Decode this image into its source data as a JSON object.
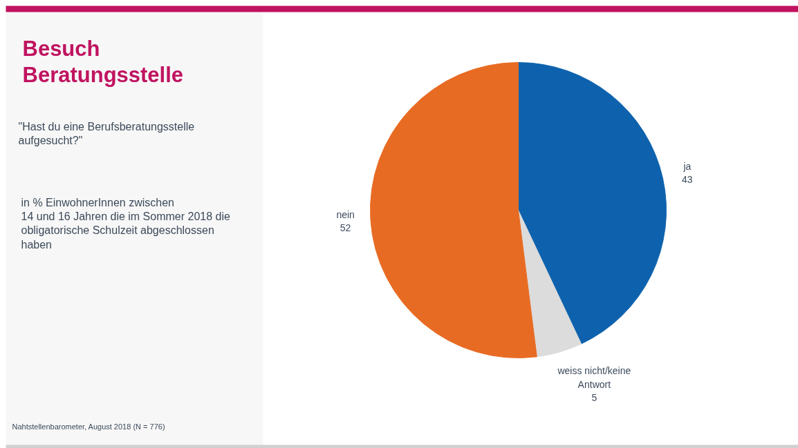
{
  "chart_data": {
    "type": "pie",
    "title": "Besuch\nBeratungsstelle",
    "subtitle": "\"Hast du eine Berufsberatungsstelle\naufgesucht?\"",
    "annotations": [
      "in % EinwohnerInnen zwischen\n14 und 16 Jahren die im Sommer 2018 die\nobligatorische Schulzeit abgeschlossen\nhaben",
      "Nahtstellenbarometer, August 2018 (N = 776)"
    ],
    "categories": [
      "ja",
      "weiss nicht/keine\nAntwort",
      "nein"
    ],
    "values": [
      43,
      5,
      52
    ],
    "colors": [
      "#0e62ad",
      "#dcdcdc",
      "#e86b23"
    ],
    "data_labels": true
  }
}
